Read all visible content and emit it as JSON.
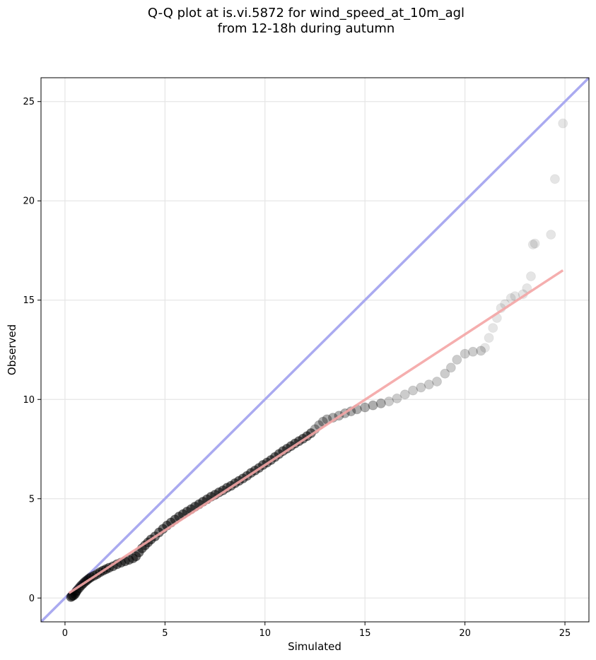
{
  "chart_data": {
    "type": "scatter",
    "title_lines": [
      "Q-Q plot at is.vi.5872 for wind_speed_at_10m_agl",
      "from 12-18h during autumn"
    ],
    "xlabel": "Simulated",
    "ylabel": "Observed",
    "xlim": [
      -1.2,
      26.2
    ],
    "ylim": [
      -1.2,
      26.2
    ],
    "xticks": [
      0,
      5,
      10,
      15,
      20,
      25
    ],
    "yticks": [
      0,
      5,
      10,
      15,
      20,
      25
    ],
    "grid": true,
    "reference_line": {
      "color": "#aaaaf0",
      "from": [
        -1.2,
        -1.2
      ],
      "to": [
        26.2,
        26.2
      ]
    },
    "fit_line": {
      "color": "#f4a6a6",
      "from": [
        0.2,
        0.25
      ],
      "to": [
        24.9,
        16.5
      ]
    },
    "point_color": "#000000",
    "points": [
      [
        0.3,
        0.05
      ],
      [
        0.35,
        0.1
      ],
      [
        0.42,
        0.12
      ],
      [
        0.5,
        0.2
      ],
      [
        0.55,
        0.3
      ],
      [
        0.6,
        0.38
      ],
      [
        0.7,
        0.5
      ],
      [
        0.8,
        0.62
      ],
      [
        0.9,
        0.72
      ],
      [
        1.0,
        0.82
      ],
      [
        1.1,
        0.9
      ],
      [
        1.2,
        0.98
      ],
      [
        1.3,
        1.05
      ],
      [
        1.45,
        1.12
      ],
      [
        1.6,
        1.2
      ],
      [
        1.75,
        1.3
      ],
      [
        1.9,
        1.38
      ],
      [
        2.05,
        1.45
      ],
      [
        2.2,
        1.52
      ],
      [
        2.4,
        1.6
      ],
      [
        2.6,
        1.7
      ],
      [
        2.8,
        1.78
      ],
      [
        3.0,
        1.85
      ],
      [
        3.2,
        1.92
      ],
      [
        3.4,
        2.0
      ],
      [
        3.55,
        2.1
      ],
      [
        3.7,
        2.3
      ],
      [
        3.85,
        2.5
      ],
      [
        4.0,
        2.65
      ],
      [
        4.15,
        2.8
      ],
      [
        4.3,
        2.95
      ],
      [
        4.5,
        3.1
      ],
      [
        4.7,
        3.3
      ],
      [
        4.9,
        3.48
      ],
      [
        5.1,
        3.65
      ],
      [
        5.3,
        3.8
      ],
      [
        5.5,
        3.95
      ],
      [
        5.7,
        4.1
      ],
      [
        5.9,
        4.22
      ],
      [
        6.1,
        4.35
      ],
      [
        6.3,
        4.47
      ],
      [
        6.5,
        4.6
      ],
      [
        6.7,
        4.72
      ],
      [
        6.9,
        4.85
      ],
      [
        7.1,
        4.97
      ],
      [
        7.3,
        5.1
      ],
      [
        7.5,
        5.2
      ],
      [
        7.7,
        5.32
      ],
      [
        7.9,
        5.42
      ],
      [
        8.1,
        5.55
      ],
      [
        8.3,
        5.65
      ],
      [
        8.5,
        5.78
      ],
      [
        8.7,
        5.9
      ],
      [
        8.9,
        6.02
      ],
      [
        9.1,
        6.15
      ],
      [
        9.3,
        6.3
      ],
      [
        9.5,
        6.42
      ],
      [
        9.7,
        6.55
      ],
      [
        9.9,
        6.7
      ],
      [
        10.1,
        6.82
      ],
      [
        10.3,
        6.95
      ],
      [
        10.5,
        7.1
      ],
      [
        10.7,
        7.25
      ],
      [
        10.9,
        7.4
      ],
      [
        11.1,
        7.52
      ],
      [
        11.3,
        7.65
      ],
      [
        11.5,
        7.78
      ],
      [
        11.7,
        7.9
      ],
      [
        11.9,
        8.02
      ],
      [
        12.1,
        8.15
      ],
      [
        12.3,
        8.3
      ],
      [
        12.5,
        8.5
      ],
      [
        12.7,
        8.7
      ],
      [
        12.9,
        8.88
      ],
      [
        13.1,
        9.0
      ],
      [
        13.4,
        9.08
      ],
      [
        13.7,
        9.18
      ],
      [
        14.0,
        9.3
      ],
      [
        14.3,
        9.4
      ],
      [
        14.6,
        9.5
      ],
      [
        15.0,
        9.6
      ],
      [
        15.4,
        9.7
      ],
      [
        15.8,
        9.8
      ],
      [
        16.2,
        9.9
      ],
      [
        16.6,
        10.05
      ],
      [
        17.0,
        10.25
      ],
      [
        17.4,
        10.45
      ],
      [
        17.8,
        10.6
      ],
      [
        18.2,
        10.75
      ],
      [
        18.6,
        10.9
      ],
      [
        19.0,
        11.3
      ],
      [
        19.3,
        11.6
      ],
      [
        19.6,
        12.0
      ],
      [
        20.0,
        12.3
      ],
      [
        20.4,
        12.4
      ],
      [
        20.8,
        12.45
      ],
      [
        21.0,
        12.6
      ],
      [
        21.2,
        13.1
      ],
      [
        21.4,
        13.6
      ],
      [
        21.6,
        14.1
      ],
      [
        21.8,
        14.6
      ],
      [
        22.0,
        14.8
      ],
      [
        22.3,
        15.1
      ],
      [
        22.5,
        15.2
      ],
      [
        22.9,
        15.3
      ],
      [
        23.1,
        15.6
      ],
      [
        23.3,
        16.2
      ],
      [
        23.4,
        17.8
      ],
      [
        23.5,
        17.85
      ],
      [
        24.3,
        18.3
      ],
      [
        24.5,
        21.1
      ],
      [
        24.9,
        23.9
      ]
    ]
  }
}
